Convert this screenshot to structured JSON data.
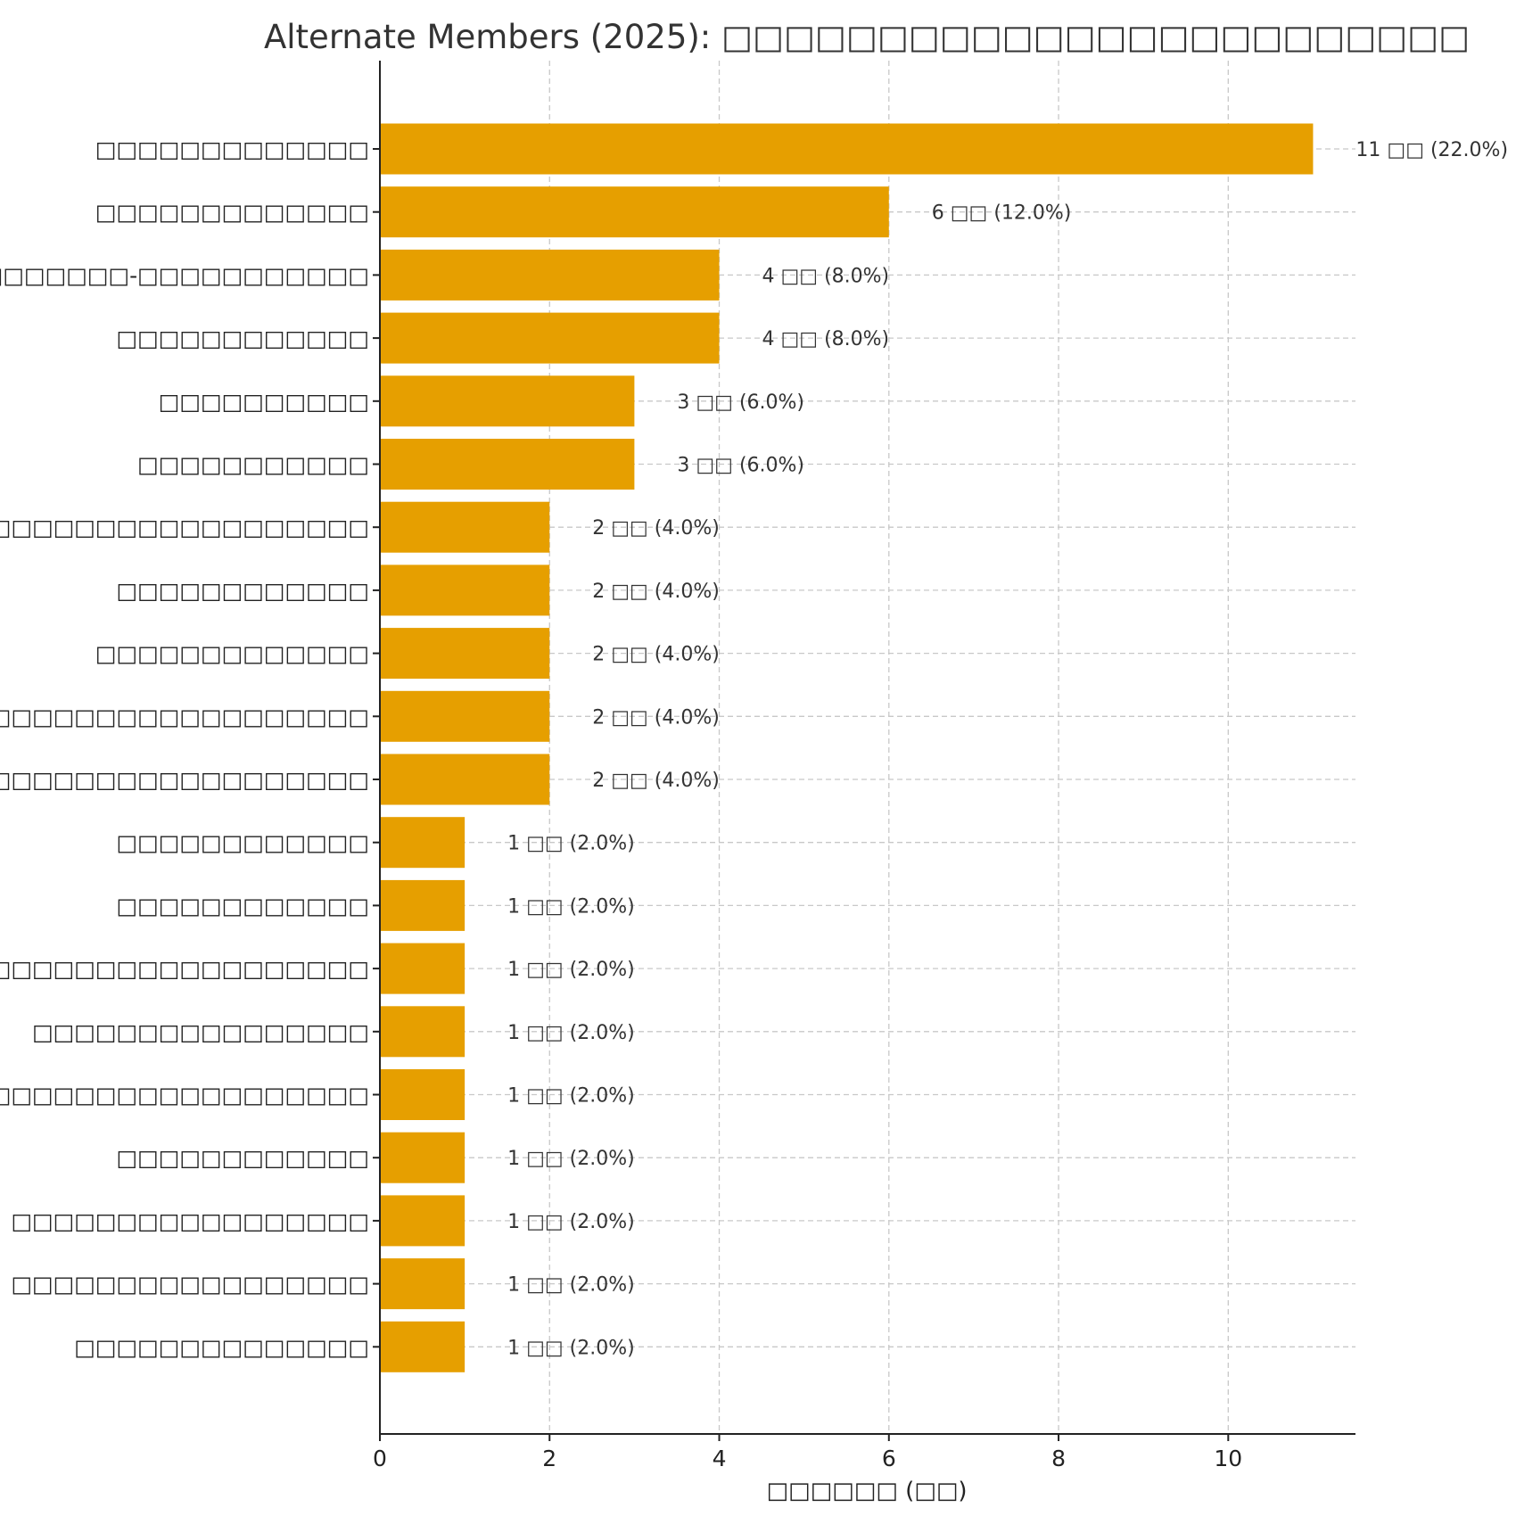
{
  "chart_data": {
    "type": "bar",
    "orientation": "horizontal",
    "title": "Alternate Members (2025): □□□□□□□□□□□□□□□□□□□□□□□□",
    "xlabel": "□□□□□□ (□□)",
    "ylabel": "",
    "xlim": [
      0,
      11.5
    ],
    "xticks": [
      "0",
      "2",
      "4",
      "6",
      "8",
      "10"
    ],
    "grid": true,
    "bar_color": "#E69F00",
    "categories": [
      "□□□□□□□□□□□□□",
      "□□□□□□□□□□□□□",
      "□□□□□□□□□-□□□□□□□□□□□",
      "□□□□□□□□□□□□",
      "□□□□□□□□□□",
      "□□□□□□□□□□□",
      "□□□□□□□□□□□□□□□□□□",
      "□□□□□□□□□□□□",
      "□□□□□□□□□□□□□",
      "□□□□□□□□□□□□□□□□□□□□□□□□□",
      "□□□□□□□□□□□□□□□□□□□",
      "□□□□□□□□□□□□",
      "□□□□□□□□□□□□",
      "□□□□□□□□□□□□□□□□□□□□",
      "□□□□□□□□□□□□□□□□",
      "□□□□□□□□□□□□□□□□□□□□",
      "□□□□□□□□□□□□",
      "□□□□□□□□□□□□□□□□□",
      "□□□□□□□□□□□□□□□□□",
      "□□□□□□□□□□□□□□"
    ],
    "values": [
      11,
      6,
      4,
      4,
      3,
      3,
      2,
      2,
      2,
      2,
      2,
      1,
      1,
      1,
      1,
      1,
      1,
      1,
      1,
      1
    ],
    "data_labels": [
      "11 □□ (22.0%)",
      "6 □□ (12.0%)",
      "4 □□ (8.0%)",
      "4 □□ (8.0%)",
      "3 □□ (6.0%)",
      "3 □□ (6.0%)",
      "2 □□ (4.0%)",
      "2 □□ (4.0%)",
      "2 □□ (4.0%)",
      "2 □□ (4.0%)",
      "2 □□ (4.0%)",
      "1 □□ (2.0%)",
      "1 □□ (2.0%)",
      "1 □□ (2.0%)",
      "1 □□ (2.0%)",
      "1 □□ (2.0%)",
      "1 □□ (2.0%)",
      "1 □□ (2.0%)",
      "1 □□ (2.0%)",
      "1 □□ (2.0%)"
    ]
  }
}
